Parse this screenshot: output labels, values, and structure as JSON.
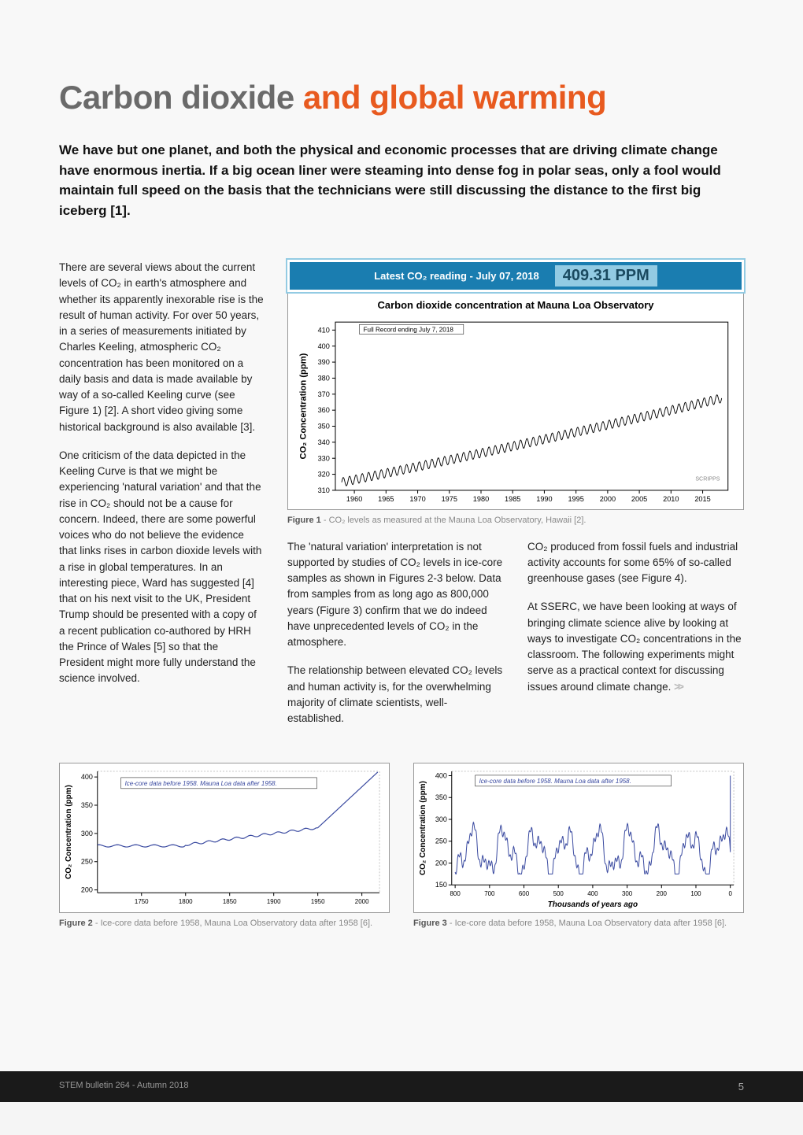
{
  "title_lead": "Carbon dioxide",
  "title_rest": " and global warming",
  "intro": "We have but one planet, and both the physical and economic processes that are driving climate change have enormous inertia. If a big ocean liner were steaming into dense fog in polar seas, only a fool would maintain full speed on the basis that the technicians were still discussing the distance to the first big iceberg [1].",
  "para1": "There are several views about the current levels of CO₂ in earth's atmosphere and whether its apparently inexorable rise is the result of human activity. For over 50 years, in a series of measurements initiated by Charles Keeling, atmospheric CO₂ concentration has been monitored on a daily basis and data is made available by way of a so-called Keeling curve (see Figure 1) [2]. A short video giving some historical background is also available [3].",
  "para2": "One criticism of the data depicted in the Keeling Curve is that we might be experiencing 'natural variation' and that the rise in CO₂ should not be a cause for concern. Indeed, there are some powerful voices who do not believe the evidence that links rises in carbon dioxide levels with a rise in global temperatures. In an interesting piece, Ward has suggested [4] that on his next visit to the UK, President Trump should be presented with a copy of a recent publication co-authored by HRH the Prince of Wales [5] so that the President might more fully understand the science involved.",
  "reading_label": "Latest CO₂ reading - July 07, 2018",
  "reading_value": "409.31 PPM",
  "fig1": {
    "title": "Carbon dioxide concentration at Mauna Loa Observatory",
    "record_label": "Full Record ending July 7, 2018",
    "caption_b": "Figure 1",
    "caption": " - CO₂ levels as measured at the Mauna Loa Observatory, Hawaii [2].",
    "ylabel": "CO₂ Concentration (ppm)",
    "x_ticks": [
      1960,
      1965,
      1970,
      1975,
      1980,
      1985,
      1990,
      1995,
      2000,
      2005,
      2010,
      2015
    ],
    "y_ticks": [
      310,
      320,
      330,
      340,
      350,
      360,
      370,
      380,
      390,
      400,
      410
    ],
    "ylim": [
      310,
      415
    ],
    "xlim": [
      1957,
      2019
    ],
    "line_color": "#000000",
    "bg": "#ffffff",
    "attribution": "SCRIPPS"
  },
  "col1": "The 'natural variation' interpretation is not supported by studies of CO₂ levels in ice-core samples as shown in Figures 2-3 below. Data from samples from as long ago as 800,000 years (Figure 3) confirm that we do indeed have unprecedented levels of CO₂ in the atmosphere.",
  "col1b": "The relationship between elevated CO₂ levels and human activity is, for the overwhelming majority of climate scientists, well-established.",
  "col2": "CO₂ produced from fossil fuels and industrial activity accounts for some 65% of so-called greenhouse gases (see Figure 4).",
  "col2b": "At SSERC, we have been looking at ways of bringing climate science alive by looking at ways to investigate CO₂ concentrations in the classroom. The following experiments might serve as a practical context for discussing issues around climate change.",
  "fig2": {
    "legend": "Ice-core data before 1958. Mauna Loa data after 1958.",
    "ylabel": "CO₂ Concentration (ppm)",
    "x_ticks": [
      1750,
      1800,
      1850,
      1900,
      1950,
      2000
    ],
    "y_ticks": [
      200,
      250,
      300,
      350,
      400
    ],
    "xlim": [
      1700,
      2020
    ],
    "ylim": [
      195,
      410
    ],
    "line_color": "#3a4aa0",
    "caption_b": "Figure 2",
    "caption": " - Ice-core data before 1958, Mauna Loa Observatory data after 1958 [6]."
  },
  "fig3": {
    "legend": "Ice-core data before 1958. Mauna Loa data after 1958.",
    "ylabel": "CO₂ Concentration (ppm)",
    "xlabel": "Thousands of years ago",
    "x_ticks": [
      800,
      700,
      600,
      500,
      400,
      300,
      200,
      100,
      0
    ],
    "y_ticks": [
      150,
      200,
      250,
      300,
      350,
      400
    ],
    "xlim": [
      810,
      -10
    ],
    "ylim": [
      150,
      410
    ],
    "line_color": "#3a4aa0",
    "caption_b": "Figure 3",
    "caption": " - Ice-core data before 1958, Mauna Loa Observatory data after 1958 [6]."
  },
  "footer_left": "STEM bulletin 264  -  Autumn 2018",
  "footer_page": "5"
}
